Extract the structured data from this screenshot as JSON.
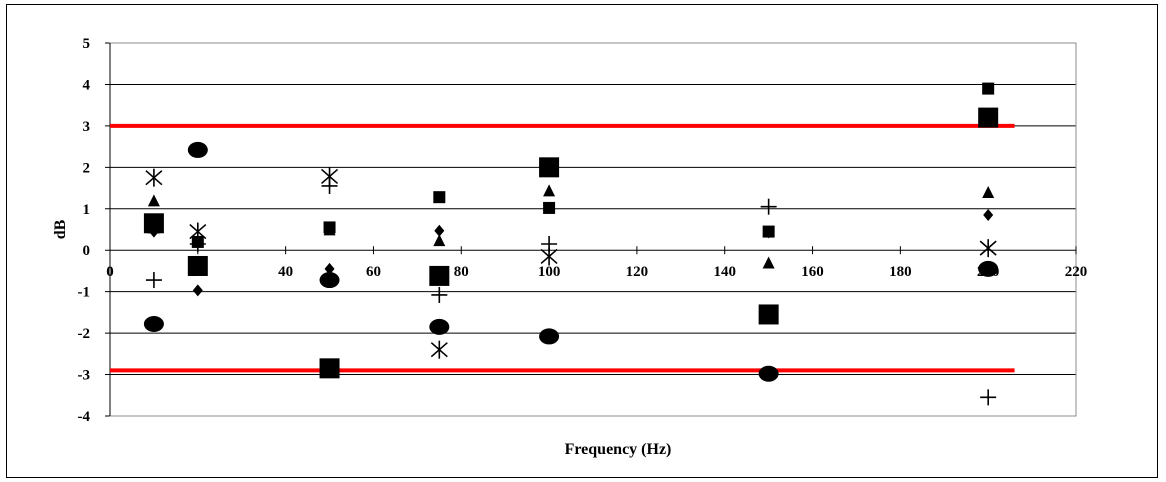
{
  "chart_data": {
    "type": "scatter",
    "title": "",
    "xlabel": "Frequency  (Hz)",
    "ylabel": "dB",
    "xlim": [
      0,
      220
    ],
    "ylim": [
      -4,
      5
    ],
    "x_ticks": [
      0,
      20,
      40,
      60,
      80,
      100,
      120,
      140,
      160,
      180,
      200,
      220
    ],
    "y_ticks": [
      -4,
      -3,
      -2,
      -1,
      0,
      1,
      2,
      3,
      4,
      5
    ],
    "x_tick_labels": [
      "0",
      "20",
      "40",
      "60",
      "80",
      "100",
      "120",
      "140",
      "160",
      "180",
      "200",
      "220"
    ],
    "y_tick_labels": [
      "-4",
      "-3",
      "-2",
      "-1",
      "0",
      "1",
      "2",
      "3",
      "4",
      "5"
    ],
    "grid": "horizontal",
    "legend": "none",
    "reference_lines": [
      {
        "y": 3.0,
        "x_range": [
          0,
          206
        ],
        "color": "#ff0000"
      },
      {
        "y": -2.9,
        "x_range": [
          0,
          206
        ],
        "color": "#ff0000"
      }
    ],
    "series": [
      {
        "marker": "diamond",
        "points": [
          [
            10,
            0.45
          ],
          [
            20,
            -0.97
          ],
          [
            50,
            -0.45
          ],
          [
            75,
            0.47
          ],
          [
            150,
            0.43
          ],
          [
            200,
            0.85
          ]
        ]
      },
      {
        "marker": "square-small",
        "points": [
          [
            10,
            0.55
          ],
          [
            20,
            0.2
          ],
          [
            50,
            0.55
          ],
          [
            75,
            1.28
          ],
          [
            100,
            1.02
          ],
          [
            150,
            0.45
          ],
          [
            200,
            3.9
          ]
        ]
      },
      {
        "marker": "triangle",
        "points": [
          [
            10,
            1.18
          ],
          [
            20,
            0.2
          ],
          [
            50,
            0.48
          ],
          [
            75,
            0.22
          ],
          [
            100,
            1.42
          ],
          [
            150,
            -0.32
          ],
          [
            200,
            1.38
          ]
        ]
      },
      {
        "marker": "asterisk",
        "points": [
          [
            10,
            1.75
          ],
          [
            20,
            0.45
          ],
          [
            50,
            1.78
          ],
          [
            75,
            -2.4
          ],
          [
            100,
            -0.15
          ],
          [
            200,
            0.05
          ]
        ]
      },
      {
        "marker": "plus",
        "points": [
          [
            10,
            -0.72
          ],
          [
            20,
            0.15
          ],
          [
            50,
            1.55
          ],
          [
            75,
            -1.08
          ],
          [
            100,
            0.15
          ],
          [
            150,
            1.05
          ],
          [
            200,
            -3.55
          ]
        ]
      },
      {
        "marker": "square-large",
        "points": [
          [
            10,
            0.65
          ],
          [
            20,
            -0.38
          ],
          [
            50,
            -2.85
          ],
          [
            75,
            -0.62
          ],
          [
            100,
            2.0
          ],
          [
            150,
            -1.55
          ],
          [
            200,
            3.2
          ]
        ]
      },
      {
        "marker": "circle",
        "points": [
          [
            10,
            -1.78
          ],
          [
            20,
            2.42
          ],
          [
            50,
            -0.72
          ],
          [
            75,
            -1.85
          ],
          [
            100,
            -2.08
          ],
          [
            150,
            -2.98
          ],
          [
            200,
            -0.45
          ]
        ]
      }
    ]
  }
}
